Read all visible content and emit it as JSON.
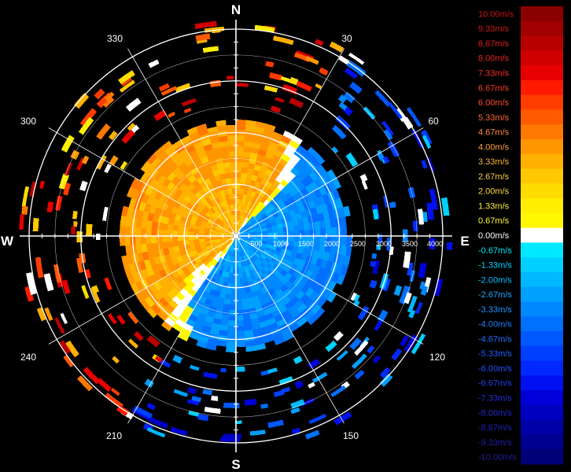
{
  "chart_data": {
    "type": "heatmap",
    "subtype": "polar radial velocity (PPI)",
    "compass": {
      "n": "N",
      "e": "E",
      "s": "S",
      "w": "W"
    },
    "azimuth_labels": [
      "30",
      "60",
      "120",
      "150",
      "210",
      "240",
      "300",
      "330"
    ],
    "range_labels": [
      "500",
      "1000",
      "1500",
      "2000",
      "2500",
      "3000",
      "3500",
      "4000"
    ],
    "range_max": 4000,
    "range_unit": "m",
    "grid": true,
    "colorscale": [
      {
        "label": "10.00m/s",
        "value": 10.0,
        "color": "#8b0000",
        "text_color": "#cc1111"
      },
      {
        "label": "9.33m/s",
        "value": 9.33,
        "color": "#a00000",
        "text_color": "#d01818"
      },
      {
        "label": "8.67m/s",
        "value": 8.67,
        "color": "#b80000",
        "text_color": "#e01c1c"
      },
      {
        "label": "8.00m/s",
        "value": 8.0,
        "color": "#d00000",
        "text_color": "#ee2020"
      },
      {
        "label": "7.33m/s",
        "value": 7.33,
        "color": "#e60000",
        "text_color": "#ff2a2a"
      },
      {
        "label": "6.67m/s",
        "value": 6.67,
        "color": "#ff1a00",
        "text_color": "#ff3a20"
      },
      {
        "label": "6.00m/s",
        "value": 6.0,
        "color": "#ff3c00",
        "text_color": "#ff4a2a"
      },
      {
        "label": "5.33m/s",
        "value": 5.33,
        "color": "#ff5a00",
        "text_color": "#ff6a30"
      },
      {
        "label": "4.67m/s",
        "value": 4.67,
        "color": "#ff7800",
        "text_color": "#ff8840"
      },
      {
        "label": "4.00m/s",
        "value": 4.0,
        "color": "#ff9600",
        "text_color": "#ffa040"
      },
      {
        "label": "3.33m/s",
        "value": 3.33,
        "color": "#ffb000",
        "text_color": "#ffb840"
      },
      {
        "label": "2.67m/s",
        "value": 2.67,
        "color": "#ffc800",
        "text_color": "#ffcc40"
      },
      {
        "label": "2.00m/s",
        "value": 2.0,
        "color": "#ffdc00",
        "text_color": "#ffdc40"
      },
      {
        "label": "1.33m/s",
        "value": 1.33,
        "color": "#ffee00",
        "text_color": "#ffee40"
      },
      {
        "label": "0.67m/s",
        "value": 0.67,
        "color": "#fff800",
        "text_color": "#fff840"
      },
      {
        "label": "0.00m/s",
        "value": 0.0,
        "color": "#ffffff",
        "text_color": "#ffffff"
      },
      {
        "label": "-0.67m/s",
        "value": -0.67,
        "color": "#00e8ff",
        "text_color": "#00e8ff"
      },
      {
        "label": "-1.33m/s",
        "value": -1.33,
        "color": "#00d0ff",
        "text_color": "#00d4ff"
      },
      {
        "label": "-2.00m/s",
        "value": -2.0,
        "color": "#00b8ff",
        "text_color": "#00c0ff"
      },
      {
        "label": "-2.67m/s",
        "value": -2.67,
        "color": "#00a0ff",
        "text_color": "#20aaff"
      },
      {
        "label": "-3.33m/s",
        "value": -3.33,
        "color": "#0088ff",
        "text_color": "#2096ff"
      },
      {
        "label": "-4.00m/s",
        "value": -4.0,
        "color": "#0070ff",
        "text_color": "#2080ff"
      },
      {
        "label": "-4.67m/s",
        "value": -4.67,
        "color": "#0058ff",
        "text_color": "#2070ff"
      },
      {
        "label": "-5.33m/s",
        "value": -5.33,
        "color": "#0040ff",
        "text_color": "#2060ff"
      },
      {
        "label": "-6.00m/s",
        "value": -6.0,
        "color": "#0028ff",
        "text_color": "#2050ff"
      },
      {
        "label": "-6.67m/s",
        "value": -6.67,
        "color": "#0010f0",
        "text_color": "#2040ee"
      },
      {
        "label": "-7.33m/s",
        "value": -7.33,
        "color": "#0000d8",
        "text_color": "#2030dd"
      },
      {
        "label": "-8.00m/s",
        "value": -8.0,
        "color": "#0000c0",
        "text_color": "#2028cc"
      },
      {
        "label": "-8.67m/s",
        "value": -8.67,
        "color": "#0000a8",
        "text_color": "#2020bb"
      },
      {
        "label": "-9.33m/s",
        "value": -9.33,
        "color": "#000090",
        "text_color": "#2020aa"
      },
      {
        "label": "-10.00m/s",
        "value": -10.0,
        "color": "#000078",
        "text_color": "#202099"
      }
    ],
    "field": {
      "description_values": "approximate radial velocity field",
      "dense_region_max_range": 2250,
      "west_half_velocity": 3.8,
      "east_half_velocity": -2.7,
      "boundary_azimuth_deg": 30
    },
    "sparse_echo_ranges": [
      2500,
      4000
    ]
  }
}
